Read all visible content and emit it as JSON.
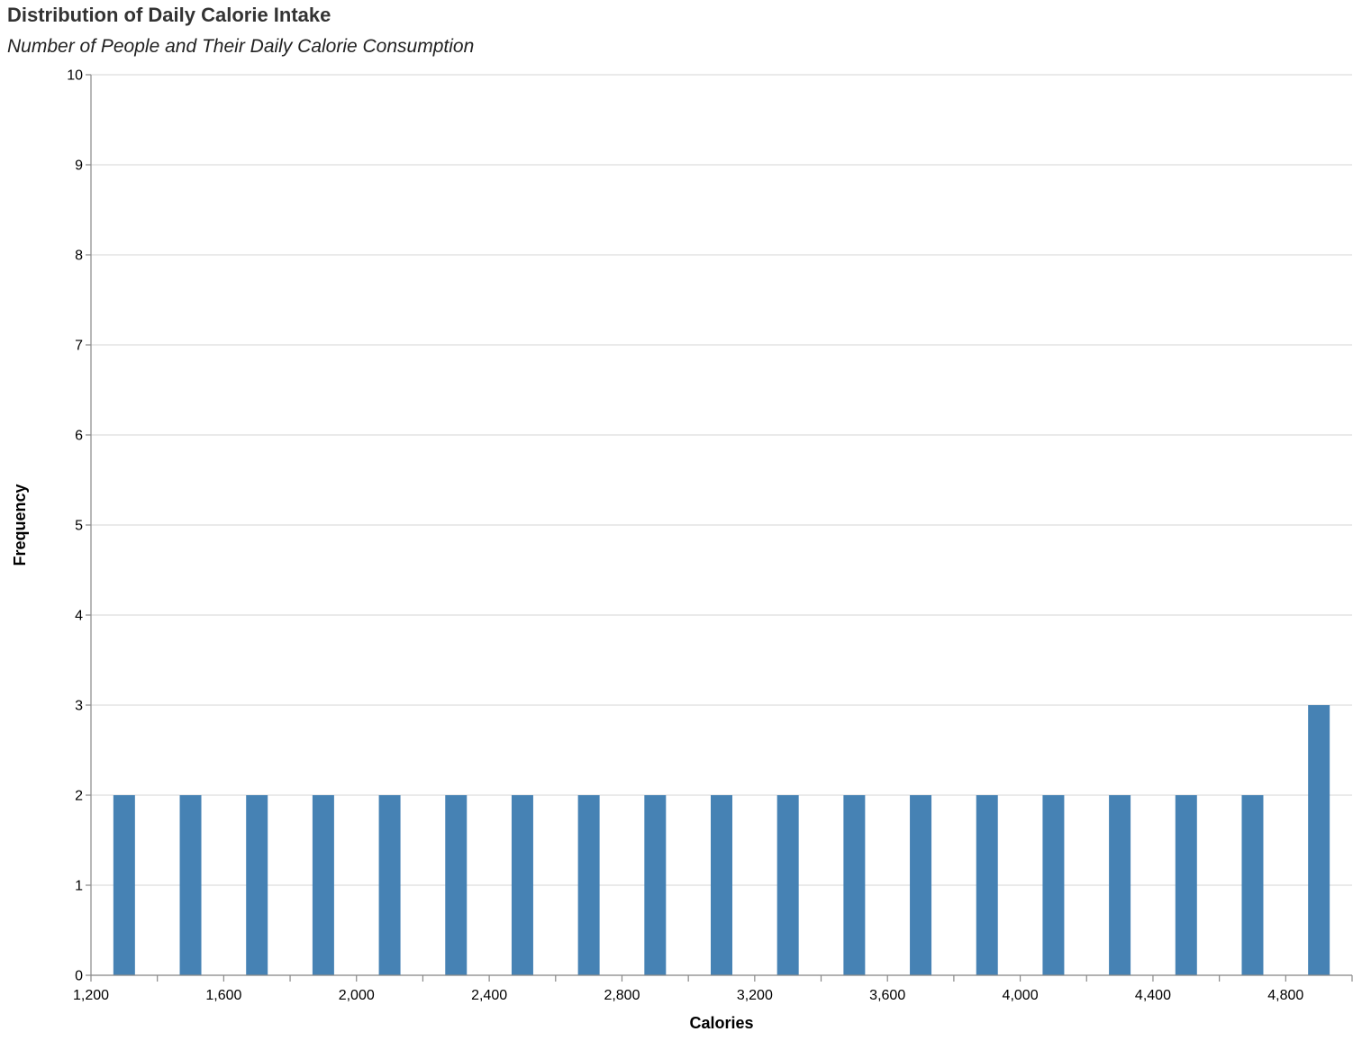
{
  "chart_data": {
    "type": "bar",
    "title": "Distribution of Daily Calorie Intake",
    "subtitle": "Number of People and Their Daily Calorie Consumption",
    "xlabel": "Calories",
    "ylabel": "Frequency",
    "xlim": [
      1200,
      5000
    ],
    "ylim": [
      0,
      10
    ],
    "x_ticks": [
      1200,
      1600,
      2000,
      2400,
      2800,
      3200,
      3600,
      4000,
      4400,
      4800
    ],
    "x_tick_labels": [
      "1,200",
      "1,600",
      "2,000",
      "2,400",
      "2,800",
      "3,200",
      "3,600",
      "4,000",
      "4,400",
      "4,800"
    ],
    "y_ticks": [
      0,
      1,
      2,
      3,
      4,
      5,
      6,
      7,
      8,
      9,
      10
    ],
    "grid": true,
    "bar_color": "#4682b4",
    "bins": [
      {
        "start": 1200,
        "end": 1400,
        "count": 2
      },
      {
        "start": 1400,
        "end": 1600,
        "count": 2
      },
      {
        "start": 1600,
        "end": 1800,
        "count": 2
      },
      {
        "start": 1800,
        "end": 2000,
        "count": 2
      },
      {
        "start": 2000,
        "end": 2200,
        "count": 2
      },
      {
        "start": 2200,
        "end": 2400,
        "count": 2
      },
      {
        "start": 2400,
        "end": 2600,
        "count": 2
      },
      {
        "start": 2600,
        "end": 2800,
        "count": 2
      },
      {
        "start": 2800,
        "end": 3000,
        "count": 2
      },
      {
        "start": 3000,
        "end": 3200,
        "count": 2
      },
      {
        "start": 3200,
        "end": 3400,
        "count": 2
      },
      {
        "start": 3400,
        "end": 3600,
        "count": 2
      },
      {
        "start": 3600,
        "end": 3800,
        "count": 2
      },
      {
        "start": 3800,
        "end": 4000,
        "count": 2
      },
      {
        "start": 4000,
        "end": 4200,
        "count": 2
      },
      {
        "start": 4200,
        "end": 4400,
        "count": 2
      },
      {
        "start": 4400,
        "end": 4600,
        "count": 2
      },
      {
        "start": 4600,
        "end": 4800,
        "count": 2
      },
      {
        "start": 4800,
        "end": 5000,
        "count": 3
      }
    ]
  }
}
